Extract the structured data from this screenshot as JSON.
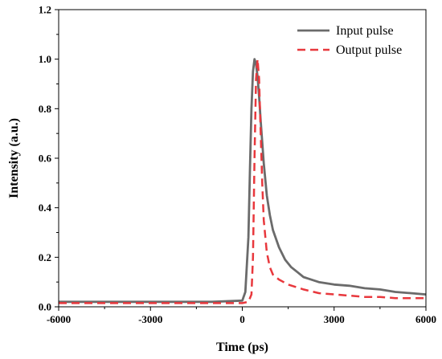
{
  "chart_data": {
    "type": "line",
    "title": "",
    "xlabel": "Time (ps)",
    "ylabel": "Intensity (a.u.)",
    "xlim": [
      -6000,
      6000
    ],
    "ylim": [
      0,
      1.2
    ],
    "x_ticks": [
      -6000,
      -3000,
      0,
      3000,
      6000
    ],
    "x_tick_labels": [
      "-6000",
      "-3000",
      "0",
      "3000",
      "6000"
    ],
    "y_ticks": [
      0.0,
      0.2,
      0.4,
      0.6,
      0.8,
      1.0,
      1.2
    ],
    "y_tick_labels": [
      "0.0",
      "0.2",
      "0.4",
      "0.6",
      "0.8",
      "1.0",
      "1.2"
    ],
    "grid": false,
    "legend_position": "top-right",
    "series": [
      {
        "name": "Input pulse",
        "color": "#6b6b6b",
        "style": "solid",
        "x": [
          -6000,
          -5000,
          -4000,
          -3000,
          -2000,
          -1000,
          0,
          100,
          200,
          250,
          300,
          350,
          400,
          450,
          500,
          550,
          600,
          700,
          800,
          900,
          1000,
          1200,
          1400,
          1600,
          1800,
          2000,
          2500,
          3000,
          3500,
          4000,
          4500,
          5000,
          5500,
          6000
        ],
        "y": [
          0.02,
          0.02,
          0.02,
          0.02,
          0.02,
          0.02,
          0.025,
          0.06,
          0.28,
          0.55,
          0.8,
          0.95,
          1.0,
          0.98,
          0.93,
          0.85,
          0.75,
          0.58,
          0.45,
          0.37,
          0.31,
          0.24,
          0.19,
          0.16,
          0.14,
          0.12,
          0.1,
          0.09,
          0.085,
          0.075,
          0.07,
          0.06,
          0.055,
          0.05
        ]
      },
      {
        "name": "Output pulse",
        "color": "#e8383d",
        "style": "dashed",
        "x": [
          -6000,
          -5000,
          -4000,
          -3000,
          -2000,
          -1000,
          0,
          200,
          300,
          350,
          400,
          450,
          500,
          550,
          600,
          650,
          700,
          800,
          900,
          1000,
          1200,
          1500,
          2000,
          2500,
          3000,
          3500,
          4000,
          4500,
          5000,
          5500,
          6000
        ],
        "y": [
          0.015,
          0.015,
          0.015,
          0.015,
          0.015,
          0.015,
          0.015,
          0.02,
          0.05,
          0.2,
          0.6,
          0.92,
          1.0,
          0.92,
          0.7,
          0.5,
          0.35,
          0.22,
          0.16,
          0.13,
          0.11,
          0.09,
          0.07,
          0.055,
          0.05,
          0.045,
          0.04,
          0.04,
          0.035,
          0.035,
          0.035
        ]
      }
    ]
  }
}
